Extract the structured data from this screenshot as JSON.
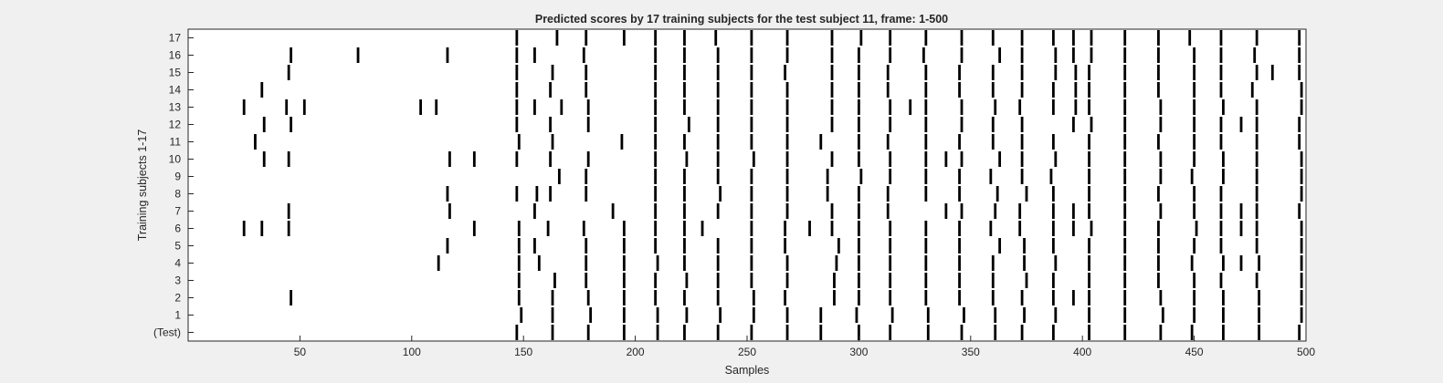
{
  "chart_data": {
    "type": "scatter",
    "title": "Predicted scores by 17 training subjects for the test subject 11, frame: 1-500",
    "xlabel": "Samples",
    "ylabel": "Training subjects 1-17",
    "xlim": [
      0,
      500
    ],
    "x_ticks": [
      50,
      100,
      150,
      200,
      250,
      300,
      350,
      400,
      450,
      500
    ],
    "x_tick_labels": [
      "50",
      "100",
      "150",
      "200",
      "250",
      "300",
      "350",
      "400",
      "450",
      "500"
    ],
    "y_tick_labels": [
      "(Test)",
      "1",
      "2",
      "3",
      "4",
      "5",
      "6",
      "7",
      "8",
      "9",
      "10",
      "11",
      "12",
      "13",
      "14",
      "15",
      "16",
      "17"
    ],
    "marker_color": "#000000",
    "series": [
      {
        "row": 0,
        "name": "(Test)",
        "x": [
          147,
          163,
          179,
          195,
          210,
          222,
          237,
          252,
          268,
          283,
          300,
          314,
          331,
          346,
          361,
          373,
          387,
          403,
          419,
          435,
          449,
          463,
          479,
          497
        ]
      },
      {
        "row": 1,
        "name": "1",
        "x": [
          149,
          163,
          180,
          195,
          210,
          223,
          238,
          253,
          268,
          283,
          299,
          315,
          331,
          347,
          361,
          374,
          388,
          403,
          419,
          436,
          450,
          463,
          479,
          498
        ]
      },
      {
        "row": 2,
        "name": "2",
        "x": [
          46,
          148,
          163,
          179,
          195,
          209,
          222,
          237,
          253,
          267,
          289,
          300,
          314,
          330,
          345,
          360,
          373,
          387,
          396,
          403,
          419,
          435,
          450,
          463,
          479,
          498
        ]
      },
      {
        "row": 3,
        "name": "3",
        "x": [
          148,
          164,
          178,
          195,
          209,
          223,
          237,
          252,
          268,
          289,
          300,
          314,
          330,
          345,
          360,
          375,
          387,
          403,
          419,
          434,
          450,
          462,
          478,
          498
        ]
      },
      {
        "row": 4,
        "name": "4",
        "x": [
          112,
          148,
          157,
          178,
          195,
          210,
          222,
          237,
          252,
          268,
          290,
          300,
          314,
          330,
          345,
          360,
          374,
          388,
          403,
          419,
          434,
          449,
          463,
          471,
          479,
          498
        ]
      },
      {
        "row": 5,
        "name": "5",
        "x": [
          116,
          148,
          155,
          178,
          195,
          209,
          222,
          237,
          252,
          267,
          291,
          300,
          314,
          330,
          345,
          363,
          374,
          387,
          403,
          419,
          434,
          450,
          462,
          478,
          498
        ]
      },
      {
        "row": 6,
        "name": "6",
        "x": [
          25,
          33,
          45,
          128,
          148,
          161,
          177,
          195,
          209,
          222,
          230,
          252,
          267,
          278,
          288,
          300,
          314,
          330,
          345,
          359,
          372,
          387,
          396,
          404,
          419,
          434,
          451,
          462,
          471,
          478,
          498
        ]
      },
      {
        "row": 7,
        "name": "7",
        "x": [
          45,
          117,
          155,
          190,
          209,
          222,
          237,
          252,
          268,
          288,
          300,
          313,
          339,
          346,
          361,
          372,
          387,
          396,
          403,
          419,
          435,
          450,
          462,
          471,
          478,
          497
        ]
      },
      {
        "row": 8,
        "name": "8",
        "x": [
          116,
          147,
          156,
          162,
          178,
          209,
          222,
          238,
          252,
          268,
          286,
          300,
          313,
          330,
          345,
          362,
          375,
          387,
          403,
          419,
          434,
          450,
          462,
          478,
          498
        ]
      },
      {
        "row": 9,
        "name": "9",
        "x": [
          166,
          178,
          209,
          222,
          237,
          252,
          268,
          286,
          301,
          314,
          330,
          345,
          359,
          373,
          386,
          403,
          419,
          435,
          449,
          463,
          478,
          498
        ]
      },
      {
        "row": 10,
        "name": "10",
        "x": [
          34,
          45,
          117,
          128,
          147,
          162,
          179,
          209,
          223,
          237,
          253,
          268,
          288,
          300,
          314,
          330,
          339,
          346,
          363,
          373,
          388,
          403,
          419,
          435,
          450,
          463,
          478,
          498
        ]
      },
      {
        "row": 11,
        "name": "11",
        "x": [
          30,
          148,
          163,
          194,
          209,
          222,
          237,
          252,
          268,
          283,
          300,
          313,
          330,
          345,
          360,
          373,
          387,
          403,
          419,
          434,
          450,
          462,
          478,
          497
        ]
      },
      {
        "row": 12,
        "name": "12",
        "x": [
          34,
          46,
          147,
          162,
          179,
          209,
          224,
          237,
          252,
          268,
          288,
          300,
          314,
          330,
          346,
          360,
          373,
          396,
          404,
          419,
          435,
          450,
          462,
          471,
          478,
          497
        ]
      },
      {
        "row": 13,
        "name": "13",
        "x": [
          25,
          44,
          52,
          104,
          111,
          147,
          155,
          167,
          179,
          209,
          222,
          237,
          252,
          268,
          288,
          300,
          314,
          323,
          330,
          346,
          361,
          372,
          387,
          397,
          403,
          419,
          435,
          450,
          463,
          478,
          498
        ]
      },
      {
        "row": 14,
        "name": "14",
        "x": [
          33,
          147,
          162,
          178,
          209,
          222,
          237,
          252,
          268,
          288,
          300,
          313,
          330,
          345,
          360,
          373,
          387,
          397,
          403,
          419,
          434,
          450,
          462,
          476,
          498
        ]
      },
      {
        "row": 15,
        "name": "15",
        "x": [
          45,
          147,
          163,
          178,
          209,
          222,
          237,
          252,
          267,
          288,
          300,
          313,
          330,
          345,
          360,
          373,
          388,
          397,
          403,
          419,
          434,
          450,
          462,
          478,
          485,
          497
        ]
      },
      {
        "row": 16,
        "name": "16",
        "x": [
          46,
          76,
          116,
          147,
          155,
          177,
          209,
          222,
          237,
          252,
          268,
          288,
          300,
          314,
          329,
          346,
          363,
          373,
          388,
          396,
          404,
          419,
          434,
          450,
          462,
          477,
          497
        ]
      },
      {
        "row": 17,
        "name": "17",
        "x": [
          147,
          165,
          178,
          195,
          209,
          222,
          236,
          252,
          268,
          288,
          301,
          314,
          330,
          346,
          360,
          373,
          387,
          396,
          404,
          419,
          434,
          448,
          462,
          478,
          497
        ]
      }
    ]
  }
}
